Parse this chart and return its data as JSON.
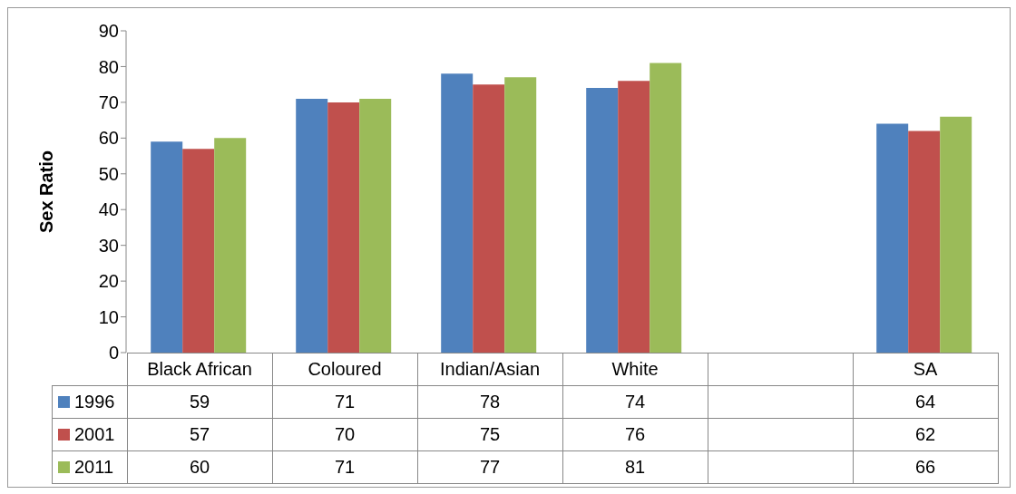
{
  "chart_data": {
    "type": "bar",
    "ylabel": "Sex Ratio",
    "categories": [
      "Black African",
      "Coloured",
      "Indian/Asian",
      "White",
      null,
      "SA"
    ],
    "series": [
      {
        "name": "1996",
        "color": "#4f81bd",
        "values": [
          59,
          71,
          78,
          74,
          null,
          64
        ]
      },
      {
        "name": "2001",
        "color": "#c0504d",
        "values": [
          57,
          70,
          75,
          76,
          null,
          62
        ]
      },
      {
        "name": "2011",
        "color": "#9bbb59",
        "values": [
          60,
          71,
          77,
          81,
          null,
          66
        ]
      }
    ],
    "ylim": [
      0,
      90
    ],
    "yticks": [
      0,
      10,
      20,
      30,
      40,
      50,
      60,
      70,
      80,
      90
    ],
    "grid": false,
    "legend": "bottom",
    "data_labels": true
  }
}
